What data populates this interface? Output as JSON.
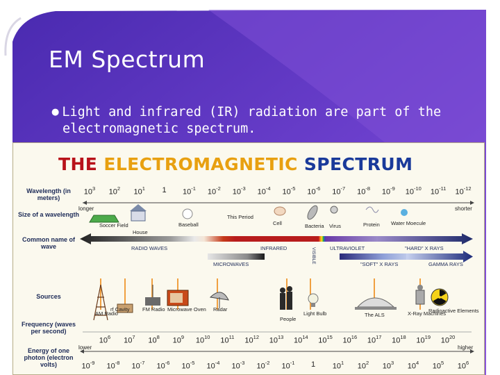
{
  "slide": {
    "title": "EM Spectrum",
    "bullet_line1": "Light and infrared (IR) radiation are part of the",
    "bullet_line2": "electromagnetic spectrum.",
    "bullet_icon": "bullet-mark-icon"
  },
  "colors": {
    "background_purple": "#6a3fc8",
    "title_text": "#ffffff",
    "figure_bg": "#fbf9ee"
  },
  "figure": {
    "title_part1": "THE ",
    "title_part2": "ELECTROMAGNETIC ",
    "title_part3": "SPECTRUM",
    "row_labels": {
      "wavelength": "Wavelength (in meters)",
      "size": "Size of a wavelength",
      "common": "Common name of wave",
      "sources": "Sources",
      "frequency": "Frequency (waves per second)",
      "energy": "Energy of one photon (electron volts)"
    },
    "wavelength_ticks": [
      {
        "base": "10",
        "exp": "3"
      },
      {
        "base": "10",
        "exp": "2"
      },
      {
        "base": "10",
        "exp": "1"
      },
      {
        "base": "1",
        "exp": ""
      },
      {
        "base": "10",
        "exp": "-1"
      },
      {
        "base": "10",
        "exp": "-2"
      },
      {
        "base": "10",
        "exp": "-3"
      },
      {
        "base": "10",
        "exp": "-4"
      },
      {
        "base": "10",
        "exp": "-5"
      },
      {
        "base": "10",
        "exp": "-6"
      },
      {
        "base": "10",
        "exp": "-7"
      },
      {
        "base": "10",
        "exp": "-8"
      },
      {
        "base": "10",
        "exp": "-9"
      },
      {
        "base": "10",
        "exp": "-10"
      },
      {
        "base": "10",
        "exp": "-11"
      },
      {
        "base": "10",
        "exp": "-12"
      }
    ],
    "size_endpoints": {
      "left": "longer",
      "right": "shorter"
    },
    "size_items": [
      "Soccer Field",
      "House",
      "Baseball",
      "This Period",
      "Cell",
      "Bacteria",
      "Virus",
      "Protein",
      "Water Moecule"
    ],
    "wave_names": {
      "radio": "RADIO WAVES",
      "infrared": "INFRARED",
      "visible": "VISIBLE",
      "ultraviolet": "ULTRAVIOLET",
      "hard_xrays": "\"HARD\" X RAYS",
      "microwaves": "MICROWAVES",
      "soft_xrays": "\"SOFT\" X RAYS",
      "gamma": "GAMMA RAYS"
    },
    "sources": [
      "AM Radio",
      "rf Cavity",
      "FM Radio",
      "Microwave Oven",
      "Radar",
      "People",
      "Light Bulb",
      "The ALS",
      "X-Ray Machines",
      "Radioactive Elements"
    ],
    "frequency_ticks": [
      {
        "base": "10",
        "exp": "6"
      },
      {
        "base": "10",
        "exp": "7"
      },
      {
        "base": "10",
        "exp": "8"
      },
      {
        "base": "10",
        "exp": "9"
      },
      {
        "base": "10",
        "exp": "10"
      },
      {
        "base": "10",
        "exp": "11"
      },
      {
        "base": "10",
        "exp": "12"
      },
      {
        "base": "10",
        "exp": "13"
      },
      {
        "base": "10",
        "exp": "14"
      },
      {
        "base": "10",
        "exp": "15"
      },
      {
        "base": "10",
        "exp": "16"
      },
      {
        "base": "10",
        "exp": "17"
      },
      {
        "base": "10",
        "exp": "18"
      },
      {
        "base": "10",
        "exp": "19"
      },
      {
        "base": "10",
        "exp": "20"
      }
    ],
    "energy_endpoints": {
      "left": "lower",
      "right": "higher"
    },
    "energy_ticks": [
      {
        "base": "10",
        "exp": "-9"
      },
      {
        "base": "10",
        "exp": "-8"
      },
      {
        "base": "10",
        "exp": "-7"
      },
      {
        "base": "10",
        "exp": "-6"
      },
      {
        "base": "10",
        "exp": "-5"
      },
      {
        "base": "10",
        "exp": "-4"
      },
      {
        "base": "10",
        "exp": "-3"
      },
      {
        "base": "10",
        "exp": "-2"
      },
      {
        "base": "10",
        "exp": "-1"
      },
      {
        "base": "1",
        "exp": ""
      },
      {
        "base": "10",
        "exp": "1"
      },
      {
        "base": "10",
        "exp": "2"
      },
      {
        "base": "10",
        "exp": "3"
      },
      {
        "base": "10",
        "exp": "4"
      },
      {
        "base": "10",
        "exp": "5"
      },
      {
        "base": "10",
        "exp": "6"
      }
    ]
  }
}
